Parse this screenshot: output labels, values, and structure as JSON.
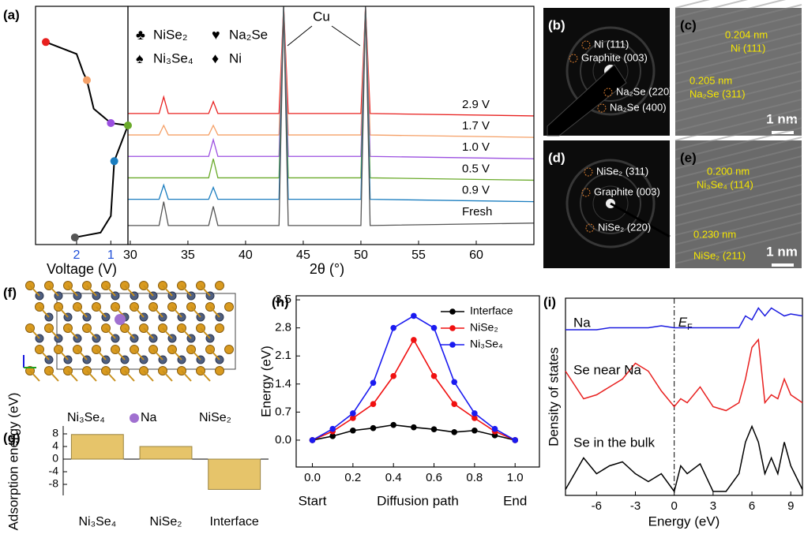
{
  "chart_data": [
    {
      "type": "xrd",
      "panel_label": "(a)",
      "xlabel": "2θ (°)",
      "x": [
        29.8,
        32.5,
        32.9,
        33.3,
        36.8,
        37.2,
        37.6,
        42.9,
        43.3,
        43.7,
        50.0,
        50.4,
        50.8,
        65
      ],
      "xlim": [
        29.8,
        65
      ],
      "xticks": [
        30,
        35,
        40,
        45,
        50,
        55,
        60
      ],
      "ylim": [
        0,
        100
      ],
      "series": [
        {
          "name": "2.9 V",
          "color": "#e8201f",
          "values": [
            55,
            55,
            62,
            55,
            55,
            60,
            55,
            55,
            100,
            55,
            55,
            100,
            55,
            54
          ]
        },
        {
          "name": "1.7 V",
          "color": "#f5a067",
          "values": [
            46,
            46,
            50,
            46,
            46,
            50,
            46,
            46,
            100,
            46,
            46,
            100,
            46,
            45
          ]
        },
        {
          "name": "1.0 V",
          "color": "#9b4fe0",
          "values": [
            37,
            37,
            37,
            37,
            37,
            44,
            37,
            37,
            100,
            37,
            37,
            100,
            37,
            36
          ]
        },
        {
          "name": "0.5 V",
          "color": "#6aaa2a",
          "values": [
            28,
            28,
            28,
            28,
            28,
            36,
            28,
            28,
            100,
            28,
            28,
            100,
            28,
            27
          ]
        },
        {
          "name": "0.9 V",
          "color": "#1a7dbf",
          "values": [
            19,
            19,
            25,
            19,
            19,
            24,
            19,
            19,
            100,
            19,
            19,
            100,
            19,
            18
          ]
        },
        {
          "name": "Fresh",
          "color": "#555555",
          "values": [
            8,
            8,
            18,
            8,
            8,
            16,
            8,
            8,
            100,
            8,
            8,
            100,
            8,
            9
          ]
        }
      ],
      "legend_symbols": [
        {
          "symbol": "♣",
          "name": "NiSe₂"
        },
        {
          "symbol": "♥",
          "name": "Na₂Se"
        },
        {
          "symbol": "♠",
          "name": "Ni₃Se₄"
        },
        {
          "symbol": "♦",
          "name": "Ni"
        }
      ],
      "annotation": "Cu"
    },
    {
      "type": "voltage",
      "xlabel": "Voltage (V)",
      "color": "#000000",
      "tick_color": "#1f4fd8",
      "x": [
        2.9,
        2.0,
        1.8,
        1.7,
        1.5,
        1.0,
        0.5,
        0.9,
        1.0,
        1.3,
        2.05
      ],
      "values": [
        85,
        80,
        72,
        69,
        57,
        51,
        50,
        35,
        12,
        5,
        3
      ],
      "xlim": [
        3.2,
        0.5
      ],
      "xticks": [
        2,
        1
      ],
      "ylim": [
        0,
        100
      ],
      "points": {
        "x": [
          2.9,
          1.7,
          1.0,
          0.5,
          0.9,
          2.05
        ],
        "values": [
          85,
          69,
          51,
          50,
          35,
          3
        ]
      }
    },
    {
      "type": "bar",
      "panel_label": "(g)",
      "ylabel": "Adsorption energy (eV)",
      "categories": [
        "Ni₃Se₄",
        "NiSe₂",
        "Interface"
      ],
      "values": [
        7.8,
        4.0,
        -9.6
      ],
      "color": "#e6c46a",
      "ylim": [
        -11.5,
        10.5
      ],
      "yticks": [
        -8,
        -4,
        0,
        4,
        8
      ]
    },
    {
      "type": "line",
      "panel_label": "(h)",
      "ylabel": "Energy (eV)",
      "xlabel": "Diffusion path",
      "x_end_labels": [
        "Start",
        "End"
      ],
      "x": [
        0,
        0.1,
        0.2,
        0.3,
        0.4,
        0.5,
        0.6,
        0.7,
        0.8,
        0.9,
        1.0
      ],
      "xlim": [
        -0.08,
        1.12
      ],
      "xticks": [
        {
          "value": 0,
          "label": "0.0"
        },
        0.2,
        0.4,
        0.6,
        0.8,
        {
          "value": 1,
          "label": "1.0"
        }
      ],
      "ylim": [
        -0.67,
        3.6
      ],
      "yticks": [
        {
          "value": 0,
          "label": "0.0"
        },
        0.7,
        1.4,
        2.1,
        2.8,
        3.5
      ],
      "legend": "upper right",
      "series": [
        {
          "name": "Interface",
          "color": "#000000",
          "values": [
            0,
            0.1,
            0.24,
            0.3,
            0.38,
            0.32,
            0.27,
            0.2,
            0.24,
            0.12,
            0
          ]
        },
        {
          "name": "NiSe₂",
          "color": "#f01010",
          "values": [
            0,
            0.22,
            0.55,
            0.9,
            1.6,
            2.5,
            1.6,
            0.9,
            0.55,
            0.22,
            0
          ]
        },
        {
          "name": "Ni₃Se₄",
          "color": "#1a1af0",
          "values": [
            0,
            0.28,
            0.67,
            1.43,
            2.8,
            3.1,
            2.8,
            1.45,
            0.67,
            0.28,
            0
          ]
        }
      ]
    },
    {
      "type": "dos",
      "panel_label": "(i)",
      "xlabel": "Energy (eV)",
      "ylabel": "Density of states",
      "x": [
        -8.4,
        -7,
        -6,
        -5,
        -4,
        -3,
        -2,
        -1,
        0,
        0.5,
        1,
        2,
        3,
        4,
        5,
        5.5,
        6,
        6.5,
        7,
        7.5,
        8,
        8.5,
        9,
        9.9
      ],
      "xlim": [
        -8.4,
        9.9
      ],
      "xticks": [
        -6,
        -3,
        0,
        3,
        6,
        9
      ],
      "ylim": [
        0,
        100
      ],
      "vline": 0,
      "vline_label": {
        "main": "E",
        "sub": "F"
      },
      "series": [
        {
          "name": "Na",
          "color": "#1a1ae0",
          "values": [
            84,
            84,
            84,
            85,
            85,
            85,
            85,
            86,
            85,
            85,
            85,
            85,
            85,
            85,
            85,
            91,
            89,
            95,
            91,
            95,
            93,
            91,
            92,
            91
          ]
        },
        {
          "name": "Se near Na",
          "color": "#e8201f",
          "values": [
            63,
            49,
            51,
            55,
            59,
            67,
            63,
            53,
            45,
            49,
            47,
            55,
            45,
            43,
            47,
            59,
            75,
            79,
            47,
            51,
            49,
            59,
            51,
            47
          ]
        },
        {
          "name": "Se in the bulk",
          "color": "#000000",
          "values": [
            3,
            19,
            11,
            15,
            17,
            11,
            7,
            11,
            2,
            15,
            11,
            16,
            2,
            2,
            11,
            27,
            35,
            27,
            11,
            19,
            11,
            27,
            15,
            3
          ]
        }
      ]
    }
  ],
  "images": [
    {
      "panel_label": "(b)",
      "labels": [
        "Ni (111)",
        "Graphite (003)",
        "Na₂Se (220)",
        "Na₂Se (400)"
      ]
    },
    {
      "panel_label": "(c)",
      "labels": [
        "0.204 nm",
        "Ni (111)",
        "0.205 nm",
        "Na₂Se (311)"
      ],
      "scale_bar": "1 nm"
    },
    {
      "panel_label": "(d)",
      "labels": [
        "NiSe₂ (311)",
        "Graphite (003)",
        "NiSe₂ (220)"
      ]
    },
    {
      "panel_label": "(e)",
      "labels": [
        "0.200 nm",
        "Ni₃Se₄ (114)",
        "0.230 nm",
        "NiSe₂ (211)"
      ],
      "scale_bar": "1 nm"
    },
    {
      "panel_label": "(f)",
      "labels": [
        "Ni₃Se₄",
        "Na",
        "NiSe₂"
      ]
    }
  ]
}
